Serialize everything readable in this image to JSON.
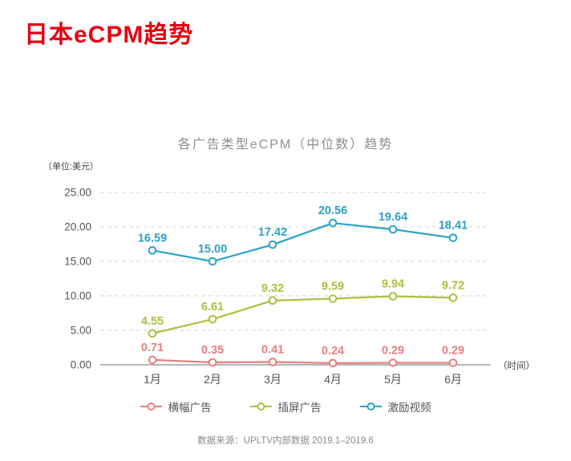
{
  "page": {
    "title": "日本eCPM趋势",
    "title_color": "#e60012",
    "footer": "数据来源：UPLTV内部数据 2019.1–2019.6"
  },
  "chart_data": {
    "type": "line",
    "title": "各广告类型eCPM（中位数）趋势",
    "unit_label": "（单位:美元）",
    "x_axis_label": "（时间）",
    "categories": [
      "1月",
      "2月",
      "3月",
      "4月",
      "5月",
      "6月"
    ],
    "yticks": [
      0,
      5,
      10,
      15,
      20,
      25
    ],
    "ylim": [
      0,
      25
    ],
    "grid": "dashed-horizontal",
    "legend_position": "bottom",
    "marker_style": "hollow-circle",
    "series": [
      {
        "name": "横幅广告",
        "color": "#e87f7f",
        "values": [
          0.71,
          0.35,
          0.41,
          0.24,
          0.29,
          0.29
        ]
      },
      {
        "name": "插屏广告",
        "color": "#a8c23f",
        "values": [
          4.55,
          6.61,
          9.32,
          9.59,
          9.94,
          9.72
        ]
      },
      {
        "name": "激励视频",
        "color": "#2aa3c6",
        "values": [
          16.59,
          15.0,
          17.42,
          20.56,
          19.64,
          18.41
        ]
      }
    ]
  }
}
